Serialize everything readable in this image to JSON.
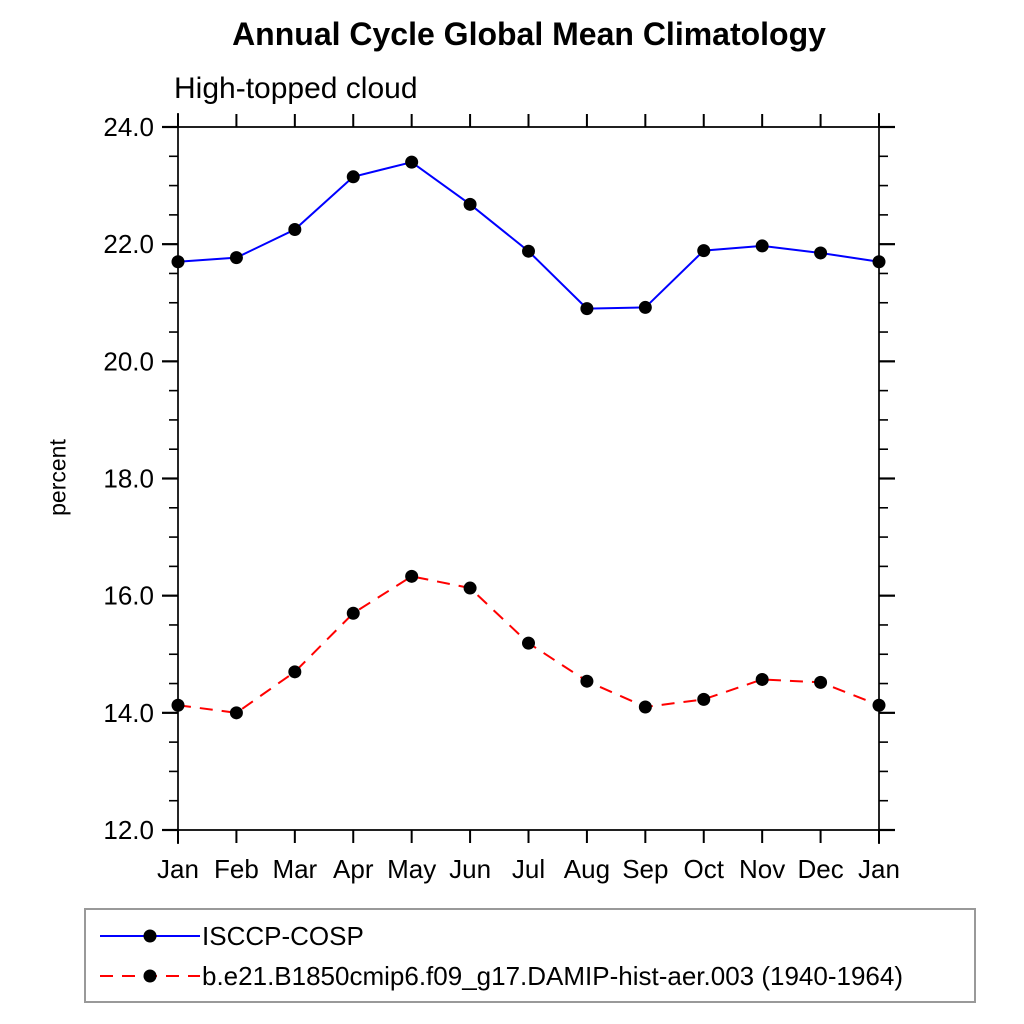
{
  "chart_data": {
    "type": "line",
    "title": "Annual Cycle Global Mean Climatology",
    "subtitle": "High-topped cloud",
    "xlabel": "",
    "ylabel": "percent",
    "categories": [
      "Jan",
      "Feb",
      "Mar",
      "Apr",
      "May",
      "Jun",
      "Jul",
      "Aug",
      "Sep",
      "Oct",
      "Nov",
      "Dec",
      "Jan"
    ],
    "series": [
      {
        "name": "ISCCP-COSP",
        "color": "#0000ff",
        "line_style": "solid",
        "marker": "circle",
        "marker_color": "#000000",
        "values": [
          21.7,
          21.77,
          22.25,
          23.15,
          23.4,
          22.68,
          21.88,
          20.9,
          20.92,
          21.89,
          21.97,
          21.85,
          21.7
        ]
      },
      {
        "name": "b.e21.B1850cmip6.f09_g17.DAMIP-hist-aer.003 (1940-1964)",
        "color": "#ff0000",
        "line_style": "dashed",
        "marker": "circle",
        "marker_color": "#000000",
        "values": [
          14.13,
          14.0,
          14.7,
          15.7,
          16.33,
          16.13,
          15.19,
          14.54,
          14.1,
          14.23,
          14.57,
          14.52,
          14.13
        ]
      }
    ],
    "ylim": [
      12.0,
      24.0
    ],
    "ytick_major": 2.0,
    "ytick_minor": 0.5,
    "ytick_labels": [
      "12.0",
      "14.0",
      "16.0",
      "18.0",
      "20.0",
      "22.0",
      "24.0"
    ],
    "grid": false,
    "legend_position": "bottom-left",
    "axis_color": "#000000",
    "text_color": "#000000"
  }
}
